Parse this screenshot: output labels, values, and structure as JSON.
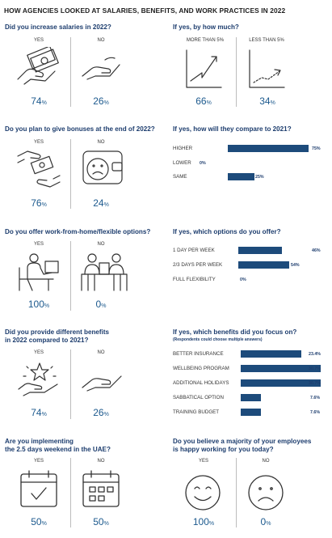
{
  "title": "HOW AGENCIES LOOKED AT SALARIES, BENEFITS, AND WORK PRACTICES IN 2022",
  "salaries": {
    "question": "Did you increase salaries in 2022?",
    "yes_label": "YES",
    "no_label": "NO",
    "yes_value": "74",
    "no_value": "26",
    "unit": "%"
  },
  "salary_amount": {
    "question": "If yes, by how much?",
    "more_label": "MORE THAN 5%",
    "less_label": "LESS THAN 5%",
    "more_value": "66",
    "less_value": "34",
    "unit": "%"
  },
  "bonuses": {
    "question": "Do you plan to give bonuses at the end of 2022?",
    "yes_label": "YES",
    "no_label": "NO",
    "yes_value": "76",
    "no_value": "24",
    "unit": "%"
  },
  "bonus_compare": {
    "question": "If yes, how will they compare to 2021?",
    "rows": [
      {
        "label": "HIGHER",
        "value": 75,
        "value_text": "75%"
      },
      {
        "label": "LOWER",
        "value": 0,
        "value_text": "0%"
      },
      {
        "label": "SAME",
        "value": 25,
        "value_text": "25%"
      }
    ]
  },
  "wfh": {
    "question": "Do you offer work-from-home/flexible options?",
    "yes_label": "YES",
    "no_label": "NO",
    "yes_value": "100",
    "no_value": "0",
    "unit": "%"
  },
  "wfh_options": {
    "question": "If yes, which options do you offer?",
    "rows": [
      {
        "label": "1 DAY PER WEEK",
        "value": 46,
        "value_text": "46%"
      },
      {
        "label": "2/3 DAYS PER WEEK",
        "value": 54,
        "value_text": "54%"
      },
      {
        "label": "FULL FLEXIBILITY",
        "value": 0,
        "value_text": "0%"
      }
    ]
  },
  "benefits": {
    "question_line1": "Did you provide different benefits",
    "question_line2": "in 2022 compared to 2021?",
    "yes_label": "YES",
    "no_label": "NO",
    "yes_value": "74",
    "no_value": "26",
    "unit": "%"
  },
  "benefit_focus": {
    "question": "If yes, which benefits did you focus on?",
    "note": "(Respondents could choose multiple answers)",
    "rows": [
      {
        "label": "BETTER INSURANCE",
        "value": 23.4,
        "value_text": "23.4%"
      },
      {
        "label": "WELLBEING PROGRAM",
        "value": 30.7,
        "value_text": "30.7%"
      },
      {
        "label": "ADDITIONAL HOLIDAYS",
        "value": 30.7,
        "value_text": "30.7%"
      },
      {
        "label": "SABBATICAL OPTION",
        "value": 7.6,
        "value_text": "7.6%"
      },
      {
        "label": "TRAINING BUDGET",
        "value": 7.6,
        "value_text": "7.6%"
      }
    ]
  },
  "weekend": {
    "question_line1": "Are you implementing",
    "question_line2": "the 2.5 days weekend in the UAE?",
    "yes_label": "YES",
    "no_label": "NO",
    "yes_value": "50",
    "no_value": "50",
    "unit": "%"
  },
  "happy": {
    "question_line1": "Do you believe a majority of your employees",
    "question_line2": "is happy working for you today?",
    "yes_label": "YES",
    "no_label": "NO",
    "yes_value": "100",
    "no_value": "0",
    "unit": "%"
  },
  "colors": {
    "navy": "#1d3d6e",
    "bar": "#1d4b7b",
    "pct": "#1d5a8e"
  },
  "chart_data": [
    {
      "type": "table",
      "title": "Did you increase salaries in 2022?",
      "categories": [
        "YES",
        "NO"
      ],
      "values": [
        74,
        26
      ]
    },
    {
      "type": "table",
      "title": "If yes, by how much?",
      "categories": [
        "MORE THAN 5%",
        "LESS THAN 5%"
      ],
      "values": [
        66,
        34
      ]
    },
    {
      "type": "table",
      "title": "Do you plan to give bonuses at the end of 2022?",
      "categories": [
        "YES",
        "NO"
      ],
      "values": [
        76,
        24
      ]
    },
    {
      "type": "bar",
      "title": "If yes, how will they compare to 2021?",
      "categories": [
        "HIGHER",
        "LOWER",
        "SAME"
      ],
      "values": [
        75,
        0,
        25
      ]
    },
    {
      "type": "table",
      "title": "Do you offer work-from-home/flexible options?",
      "categories": [
        "YES",
        "NO"
      ],
      "values": [
        100,
        0
      ]
    },
    {
      "type": "bar",
      "title": "If yes, which options do you offer?",
      "categories": [
        "1 DAY PER WEEK",
        "2/3 DAYS PER WEEK",
        "FULL FLEXIBILITY"
      ],
      "values": [
        46,
        54,
        0
      ]
    },
    {
      "type": "table",
      "title": "Did you provide different benefits in 2022 compared to 2021?",
      "categories": [
        "YES",
        "NO"
      ],
      "values": [
        74,
        26
      ]
    },
    {
      "type": "bar",
      "title": "If yes, which benefits did you focus on?",
      "categories": [
        "BETTER INSURANCE",
        "WELLBEING PROGRAM",
        "ADDITIONAL HOLIDAYS",
        "SABBATICAL OPTION",
        "TRAINING BUDGET"
      ],
      "values": [
        23.4,
        30.7,
        30.7,
        7.6,
        7.6
      ]
    },
    {
      "type": "table",
      "title": "Are you implementing the 2.5 days weekend in the UAE?",
      "categories": [
        "YES",
        "NO"
      ],
      "values": [
        50,
        50
      ]
    },
    {
      "type": "table",
      "title": "Do you believe a majority of your employees is happy working for you today?",
      "categories": [
        "YES",
        "NO"
      ],
      "values": [
        100,
        0
      ]
    }
  ]
}
